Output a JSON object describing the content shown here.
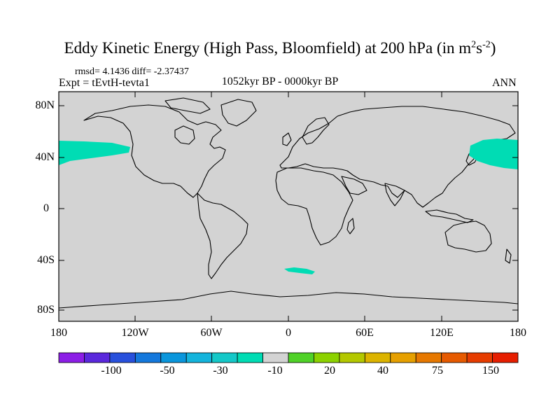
{
  "title": {
    "main": "Eddy Kinetic Energy (High Pass, Bloomfield) at 200 hPa (in m",
    "sup1": "2",
    "mid": "s",
    "sup2": "-2",
    "end": ")"
  },
  "stats": "rmsd= 4.1436 diff= -2.37437",
  "expt": "Expt = tEvtH-tevta1",
  "period": "1052kyr BP - 0000kyr BP",
  "season": "ANN",
  "map": {
    "land_color": "#d3d3d3",
    "anomaly_color": "#00dcb4",
    "y_labels": [
      "80N",
      "40N",
      "0",
      "40S",
      "80S"
    ],
    "x_labels": [
      "180",
      "120W",
      "60W",
      "0",
      "60E",
      "120E",
      "180"
    ]
  },
  "colorbar": {
    "colors": [
      "#8c1ee6",
      "#5a28dc",
      "#2850dc",
      "#1478dc",
      "#0a96dc",
      "#14b4dc",
      "#14c8c8",
      "#00dcb4",
      "#d3d3d3",
      "#50d228",
      "#8cd200",
      "#b4c800",
      "#dcb400",
      "#e6a000",
      "#e67800",
      "#e65a00",
      "#e63c00",
      "#e61e00"
    ],
    "labels": [
      "-100",
      "-50",
      "-30",
      "-10",
      "20",
      "40",
      "75",
      "150"
    ]
  }
}
